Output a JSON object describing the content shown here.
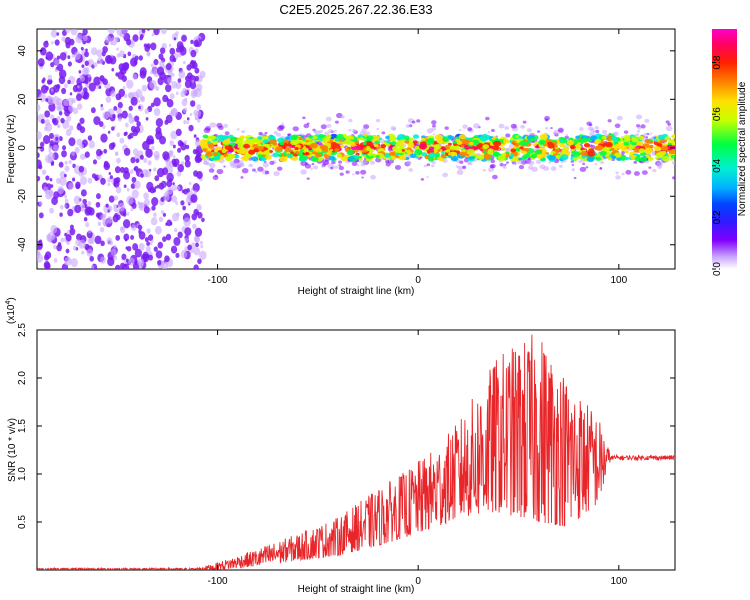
{
  "title": "C2E5.2025.267.22.36.E33",
  "chart_data": [
    {
      "type": "heatmap",
      "title": "C2E5.2025.267.22.36.E33",
      "xlabel": "Height of straight line (km)",
      "ylabel": "Frequency (Hz)",
      "xlim": [
        -190,
        128
      ],
      "ylim": [
        -50,
        49
      ],
      "xticks": [
        -100,
        0,
        100
      ],
      "xtick_labels": [
        "-100",
        "0",
        "100"
      ],
      "yticks": [
        40,
        20,
        0,
        -20,
        -40
      ],
      "ytick_labels": [
        "40",
        "20",
        "0",
        "-20",
        "-40"
      ],
      "noise_region_x": [
        -190,
        -107
      ],
      "signal_band_center_hz": 0,
      "signal_band_width_hz": [
        -8,
        8
      ],
      "colorbar": {
        "label": "Normalized spectral amplitude",
        "range": [
          0.0,
          0.93
        ],
        "ticks": [
          0.0,
          0.2,
          0.4,
          0.6,
          0.8
        ],
        "tick_labels": [
          "0.0",
          "0.2",
          "0.4",
          "0.6",
          "0.8"
        ],
        "colors": [
          "#ffffff",
          "#c9a6ff",
          "#8000ff",
          "#2d1bff",
          "#0044ff",
          "#00b3ff",
          "#00f0d0",
          "#00ff40",
          "#c8ff00",
          "#ffe000",
          "#ff8000",
          "#ff2000",
          "#ff0066",
          "#ff00cc"
        ]
      }
    },
    {
      "type": "line",
      "title": "",
      "xlabel": "Height of straight line (km)",
      "ylabel": "SNR (10 * v/v)",
      "y_multiplier_label": "(x10",
      "y_multiplier_exp": "4",
      "xlim": [
        -190,
        128
      ],
      "ylim": [
        0,
        2.5
      ],
      "xticks": [
        -100,
        0,
        100
      ],
      "xtick_labels": [
        "-100",
        "0",
        "100"
      ],
      "yticks": [
        0.5,
        1.0,
        1.5,
        2.0,
        2.5
      ],
      "ytick_labels": [
        "0.5",
        "1.0",
        "1.5",
        "2.0",
        "2.5"
      ],
      "color": "#e8262a",
      "envelope": {
        "x": [
          -190,
          -110,
          -100,
          -80,
          -60,
          -40,
          -20,
          -5,
          10,
          20,
          40,
          60,
          75,
          90,
          96,
          100,
          128
        ],
        "low": [
          0.0,
          0.0,
          0.0,
          0.04,
          0.1,
          0.15,
          0.25,
          0.35,
          0.45,
          0.55,
          0.6,
          0.5,
          0.45,
          0.7,
          1.15,
          1.15,
          1.13
        ],
        "high": [
          0.02,
          0.02,
          0.08,
          0.22,
          0.38,
          0.55,
          0.85,
          1.05,
          1.3,
          1.55,
          2.25,
          2.5,
          2.0,
          1.6,
          1.2,
          1.2,
          1.2
        ],
        "flat_after_x": 96,
        "flat_value": 1.17
      }
    }
  ]
}
